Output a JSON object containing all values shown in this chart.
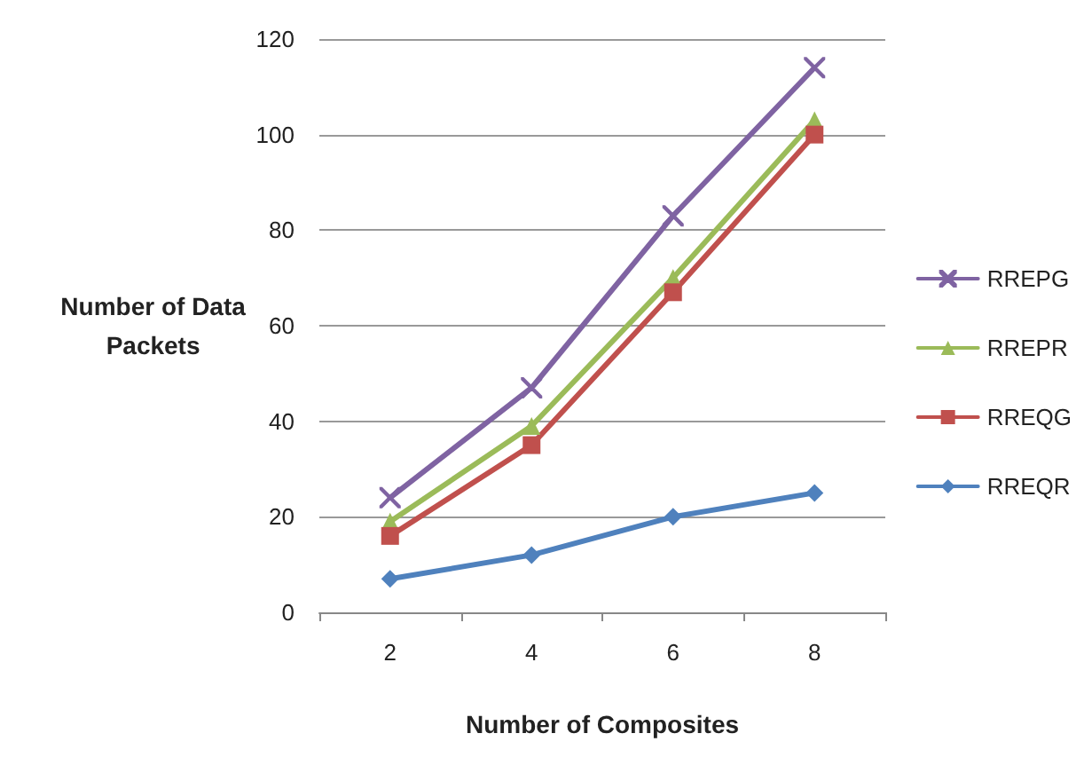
{
  "chart_data": {
    "type": "line",
    "xlabel": "Number of Composites",
    "ylabel": "Number of Data\nPackets",
    "categories": [
      "2",
      "4",
      "6",
      "8"
    ],
    "series": [
      {
        "name": "RREPG",
        "color": "#7f63a2",
        "marker": "cross",
        "values": [
          24,
          47,
          83,
          114
        ]
      },
      {
        "name": "RREPR",
        "color": "#9bbb59",
        "marker": "triangle",
        "values": [
          19,
          39,
          70,
          103
        ]
      },
      {
        "name": "RREQG",
        "color": "#c0504d",
        "marker": "square",
        "values": [
          16,
          35,
          67,
          100
        ]
      },
      {
        "name": "RREQR",
        "color": "#4f81bd",
        "marker": "diamond",
        "values": [
          7,
          12,
          20,
          25
        ]
      }
    ],
    "ylim": [
      0,
      120
    ],
    "yticks": [
      0,
      20,
      40,
      60,
      80,
      100,
      120
    ],
    "grid": "y",
    "legend": "right"
  }
}
